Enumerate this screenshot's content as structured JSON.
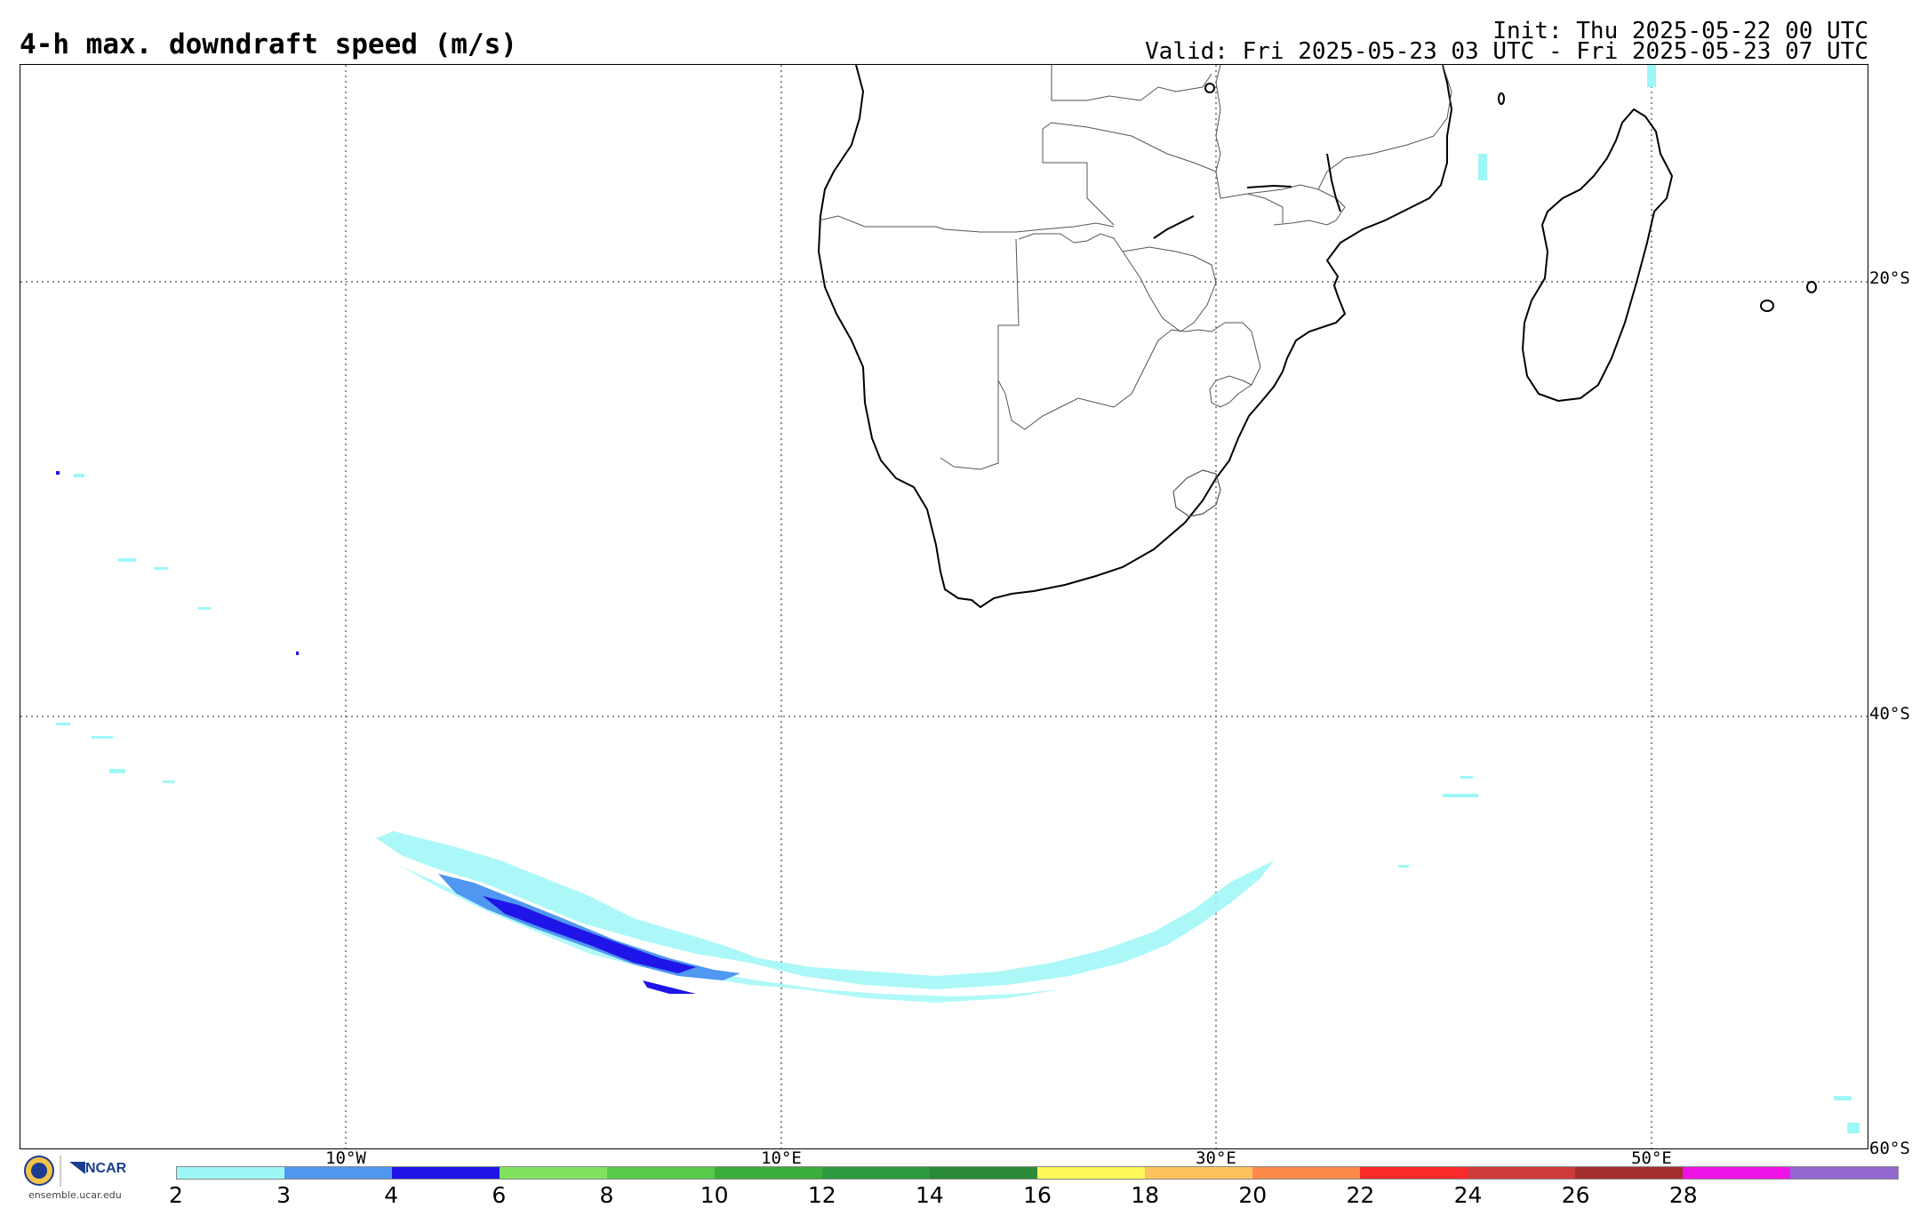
{
  "header": {
    "title": "4-h max. downdraft speed (m/s)",
    "init": "Init: Thu 2025-05-22 00 UTC",
    "valid": "Valid: Fri 2025-05-23 03 UTC - Fri 2025-05-23 07 UTC"
  },
  "axes": {
    "lat_labels": [
      "20°S",
      "40°S",
      "60°S"
    ],
    "lon_labels": [
      "10°W",
      "10°E",
      "30°E",
      "50°E"
    ]
  },
  "colorbar": {
    "ticks": [
      "2",
      "3",
      "4",
      "6",
      "8",
      "10",
      "12",
      "14",
      "16",
      "18",
      "20",
      "22",
      "24",
      "26",
      "28"
    ],
    "colors": [
      "#9ef7f7",
      "#4f97f0",
      "#1f15e8",
      "#7fe35f",
      "#58c94a",
      "#3aae3a",
      "#2d9a3e",
      "#2a8a3a",
      "#fdf95a",
      "#fdc25e",
      "#fd8a4a",
      "#f82a2a",
      "#cf3b3b",
      "#a32e2e",
      "#ee12e6",
      "#9368d0"
    ]
  },
  "logo": {
    "agency": "NCAR",
    "site": "ensemble.ucar.edu"
  },
  "map_features": {
    "projection": "cylindrical",
    "gridlines": "dotted",
    "storm_band_colors": [
      "#9ef7f7",
      "#4f97f0",
      "#1f15e8"
    ]
  }
}
